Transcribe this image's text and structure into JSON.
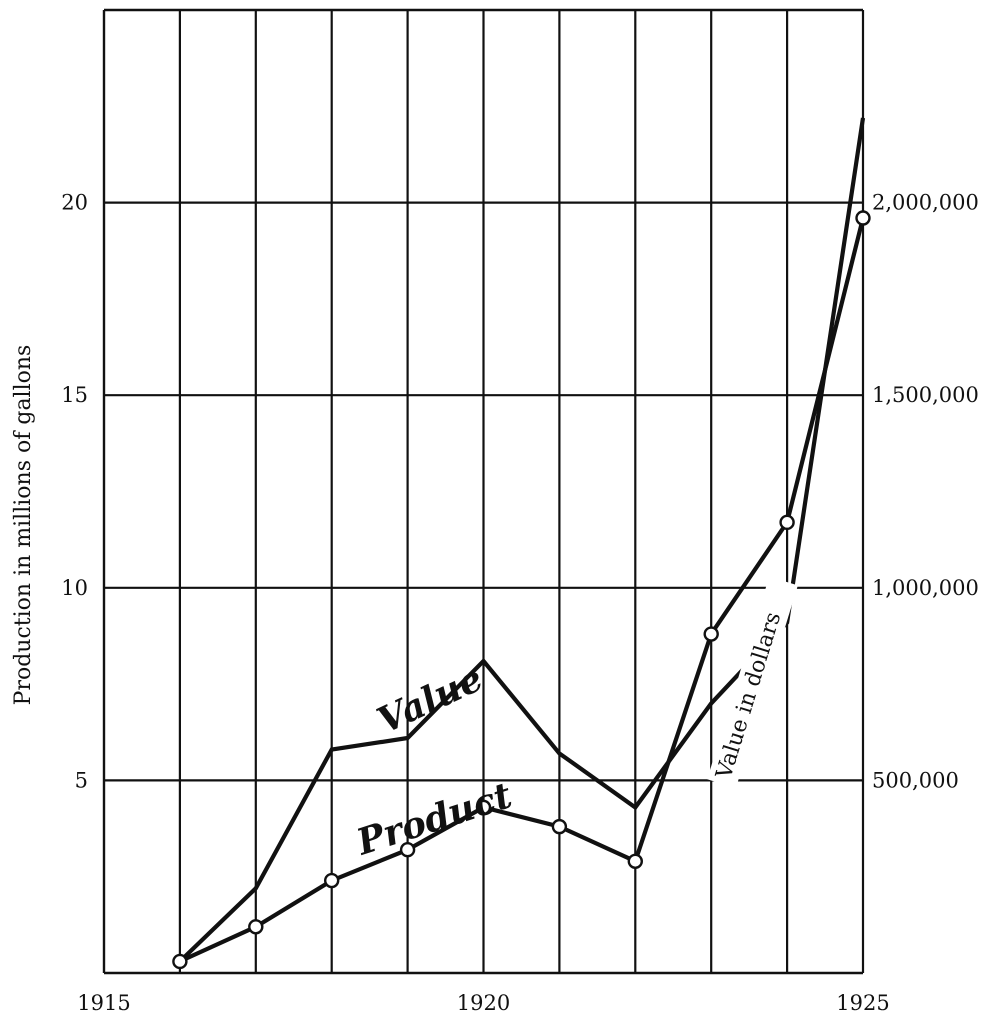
{
  "chart_data": {
    "type": "line",
    "x_tick_labels": [
      "1915",
      "1920",
      "1925"
    ],
    "y_left_tick_labels": [
      "5",
      "10",
      "15",
      "20"
    ],
    "y_right_tick_labels": [
      "500,000",
      "1,000,000",
      "1,500,000",
      "2,000,000"
    ],
    "ylabel": "Production in millions of gallons",
    "ylabel_right": "Value in dollars",
    "xlim": [
      1915,
      1925
    ],
    "ylim": [
      0,
      25
    ],
    "ylim_right": [
      0,
      2500000
    ],
    "grid": true,
    "series": [
      {
        "name": "Product",
        "axis": "left",
        "markers": "circle",
        "x": [
          1916,
          1917,
          1918,
          1919,
          1920,
          1921,
          1922,
          1923,
          1924,
          1925
        ],
        "y": [
          0.3,
          1.2,
          2.4,
          3.2,
          4.3,
          3.8,
          2.9,
          8.8,
          11.7,
          19.6
        ]
      },
      {
        "name": "Value",
        "axis": "right",
        "markers": "none",
        "x": [
          1916,
          1917,
          1918,
          1919,
          1920,
          1921,
          1922,
          1923,
          1924,
          1925
        ],
        "y": [
          30000,
          220000,
          580000,
          610000,
          810000,
          570000,
          430000,
          700000,
          910000,
          2220000
        ]
      }
    ]
  }
}
